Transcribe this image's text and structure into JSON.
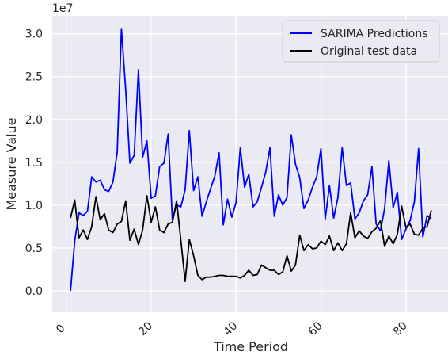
{
  "chart_data": {
    "type": "line",
    "title": "",
    "xlabel": "Time Period",
    "ylabel": "Measure Value",
    "offset_text": "1e7",
    "xlim": [
      -3.3,
      90.3
    ],
    "ylim": [
      -2500000,
      32100000
    ],
    "x_ticks": [
      0,
      20,
      40,
      60,
      80
    ],
    "x_tick_labels": [
      "0",
      "20",
      "40",
      "60",
      "80"
    ],
    "y_ticks": [
      0,
      5000000,
      10000000,
      15000000,
      20000000,
      25000000,
      30000000
    ],
    "y_tick_labels": [
      "0.0",
      "0.5",
      "1.0",
      "1.5",
      "2.0",
      "2.5",
      "3.0"
    ],
    "grid": true,
    "legend_position": "top-right",
    "x": [
      1,
      2,
      3,
      4,
      5,
      6,
      7,
      8,
      9,
      10,
      11,
      12,
      13,
      14,
      15,
      16,
      17,
      18,
      19,
      20,
      21,
      22,
      23,
      24,
      25,
      26,
      27,
      28,
      29,
      30,
      31,
      32,
      33,
      34,
      35,
      36,
      37,
      38,
      39,
      40,
      41,
      42,
      43,
      44,
      45,
      46,
      47,
      48,
      49,
      50,
      51,
      52,
      53,
      54,
      55,
      56,
      57,
      58,
      59,
      60,
      61,
      62,
      63,
      64,
      65,
      66,
      67,
      68,
      69,
      70,
      71,
      72,
      73,
      74,
      75,
      76,
      77,
      78,
      79,
      80,
      81,
      82,
      83,
      84,
      85,
      86
    ],
    "series": [
      {
        "name": "SARIMA Predictions",
        "color": "#0000ff",
        "values": [
          0,
          5800000,
          9100000,
          8800000,
          9300000,
          13300000,
          12700000,
          12900000,
          11800000,
          11600000,
          12700000,
          16200000,
          30600000,
          23500000,
          14900000,
          15800000,
          25800000,
          15600000,
          17500000,
          10800000,
          11100000,
          14500000,
          14900000,
          18300000,
          8300000,
          10000000,
          9800000,
          11800000,
          18700000,
          11700000,
          13300000,
          8700000,
          10400000,
          11900000,
          13400000,
          16100000,
          7700000,
          10700000,
          8600000,
          10300000,
          16700000,
          12100000,
          13600000,
          9800000,
          10400000,
          12100000,
          13900000,
          16700000,
          8700000,
          11200000,
          10000000,
          10900000,
          18200000,
          14800000,
          13200000,
          9600000,
          10600000,
          12100000,
          13300000,
          16600000,
          8400000,
          12300000,
          8500000,
          10900000,
          16700000,
          12300000,
          12600000,
          8400000,
          9100000,
          10500000,
          11200000,
          14500000,
          7800000,
          7000000,
          9600000,
          15200000,
          9700000,
          11500000,
          6000000,
          7200000,
          8200000,
          10400000,
          16600000,
          6300000,
          8800000,
          8400000
        ]
      },
      {
        "name": "Original test data",
        "color": "#000000",
        "values": [
          8500000,
          10600000,
          6200000,
          7100000,
          6000000,
          7500000,
          11000000,
          8300000,
          9000000,
          7100000,
          6800000,
          7800000,
          8100000,
          10500000,
          5900000,
          7200000,
          5400000,
          7100000,
          11100000,
          8000000,
          9800000,
          7100000,
          6800000,
          7800000,
          8000000,
          10500000,
          5900000,
          1100000,
          6000000,
          4100000,
          1800000,
          1300000,
          1600000,
          1600000,
          1700000,
          1800000,
          1800000,
          1700000,
          1700000,
          1700000,
          1500000,
          1800000,
          2400000,
          1800000,
          1900000,
          3000000,
          2700000,
          2400000,
          2400000,
          1900000,
          2200000,
          4100000,
          2300000,
          3000000,
          6500000,
          4700000,
          5400000,
          4900000,
          5000000,
          5800000,
          5400000,
          6400000,
          4700000,
          5600000,
          4700000,
          5500000,
          9100000,
          6200000,
          7000000,
          6400000,
          6100000,
          6900000,
          7300000,
          8200000,
          5200000,
          6400000,
          5500000,
          6600000,
          9900000,
          7400000,
          7800000,
          6600000,
          6500000,
          7300000,
          7500000,
          9400000
        ]
      }
    ]
  }
}
